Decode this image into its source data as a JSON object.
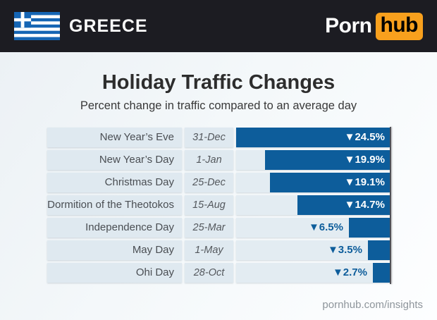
{
  "header": {
    "country": "GREECE",
    "flag": "greece-flag",
    "logo": {
      "part1": "Porn",
      "part2": "hub"
    }
  },
  "card": {
    "title": "Holiday Traffic Changes",
    "subtitle": "Percent change in traffic compared to an average day",
    "footer": "pornhub.com/insights"
  },
  "colors": {
    "header_bg": "#1c1c22",
    "logo_orange": "#f8a01d",
    "bar_blue": "#0d5d9b",
    "row_bg": "#dfe9f0",
    "bar_area_bg": "#e3ecf2",
    "axis_line": "#515157",
    "flag_blue": "#1565b4"
  },
  "chart_data": {
    "type": "bar",
    "orientation": "horizontal",
    "title": "Holiday Traffic Changes",
    "subtitle": "Percent change in traffic compared to an average day",
    "unit": "%",
    "direction": "decrease",
    "direction_marker": "▼",
    "value_axis_max": 24.5,
    "grid": false,
    "legend": false,
    "rows": [
      {
        "label": "New Year’s Eve",
        "date": "31-Dec",
        "value": 24.5
      },
      {
        "label": "New Year’s Day",
        "date": "1-Jan",
        "value": 19.9
      },
      {
        "label": "Christmas Day",
        "date": "25-Dec",
        "value": 19.1
      },
      {
        "label": "Dormition of the Theotokos",
        "date": "15-Aug",
        "value": 14.7
      },
      {
        "label": "Independence Day",
        "date": "25-Mar",
        "value": 6.5
      },
      {
        "label": "May Day",
        "date": "1-May",
        "value": 3.5
      },
      {
        "label": "Ohi Day",
        "date": "28-Oct",
        "value": 2.7
      }
    ]
  }
}
